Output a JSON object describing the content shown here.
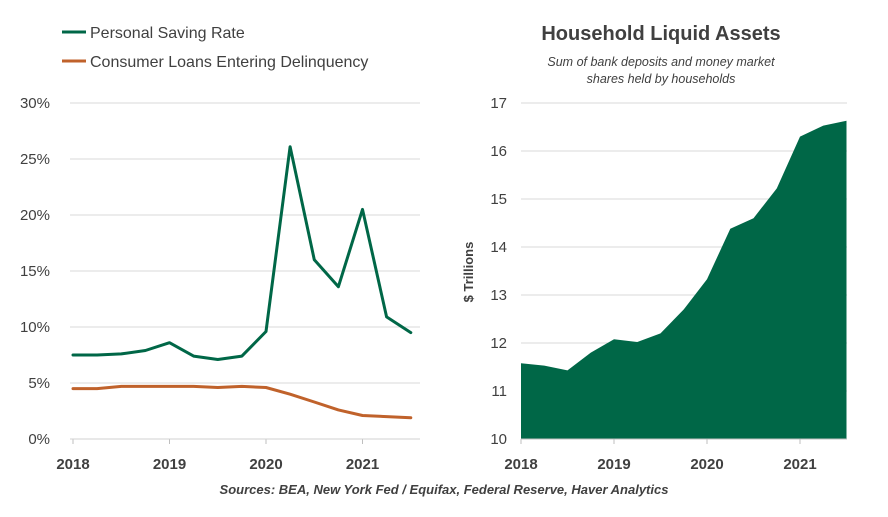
{
  "source_note": "Sources: BEA, New York Fed / Equifax, Federal Reserve, Haver Analytics",
  "chart_data": [
    {
      "type": "line",
      "title": "",
      "xlabel": "",
      "ylabel": "",
      "legend_position": "top-left",
      "x_ticks": [
        "2018",
        "2019",
        "2020",
        "2021"
      ],
      "y_ticks": [
        "0%",
        "5%",
        "10%",
        "15%",
        "20%",
        "25%",
        "30%"
      ],
      "ylim": [
        0,
        30
      ],
      "xlim": [
        2018.0,
        2021.6
      ],
      "grid": true,
      "x": [
        2018.0,
        2018.25,
        2018.5,
        2018.75,
        2019.0,
        2019.25,
        2019.5,
        2019.75,
        2020.0,
        2020.25,
        2020.5,
        2020.75,
        2021.0,
        2021.25,
        2021.5
      ],
      "series": [
        {
          "name": "Personal Saving Rate",
          "color": "#006747",
          "values": [
            7.5,
            7.5,
            7.6,
            7.9,
            8.6,
            7.4,
            7.1,
            7.4,
            9.6,
            26.1,
            16.0,
            13.6,
            20.5,
            10.9,
            9.5
          ]
        },
        {
          "name": "Consumer Loans Entering Delinquency",
          "color": "#C0622B",
          "values": [
            4.5,
            4.5,
            4.7,
            4.7,
            4.7,
            4.7,
            4.6,
            4.7,
            4.6,
            4.0,
            3.3,
            2.6,
            2.1,
            2.0,
            1.9
          ]
        }
      ]
    },
    {
      "type": "area",
      "title": "Household Liquid Assets",
      "subtitle_line1": "Sum of bank deposits and money market",
      "subtitle_line2": "shares held by households",
      "xlabel": "",
      "ylabel": "$ Trillions",
      "x_ticks": [
        "2018",
        "2019",
        "2020",
        "2021"
      ],
      "y_ticks": [
        "10",
        "11",
        "12",
        "13",
        "14",
        "15",
        "16",
        "17"
      ],
      "ylim": [
        10,
        17
      ],
      "xlim": [
        2018.0,
        2021.5
      ],
      "grid": true,
      "x": [
        2018.0,
        2018.25,
        2018.5,
        2018.75,
        2019.0,
        2019.25,
        2019.5,
        2019.75,
        2020.0,
        2020.25,
        2020.5,
        2020.75,
        2021.0,
        2021.25,
        2021.5
      ],
      "series": [
        {
          "name": "",
          "color": "#006747",
          "values": [
            11.58,
            11.53,
            11.43,
            11.8,
            12.08,
            12.02,
            12.2,
            12.7,
            13.33,
            14.38,
            14.6,
            15.22,
            16.3,
            16.53,
            16.63
          ]
        }
      ]
    }
  ]
}
